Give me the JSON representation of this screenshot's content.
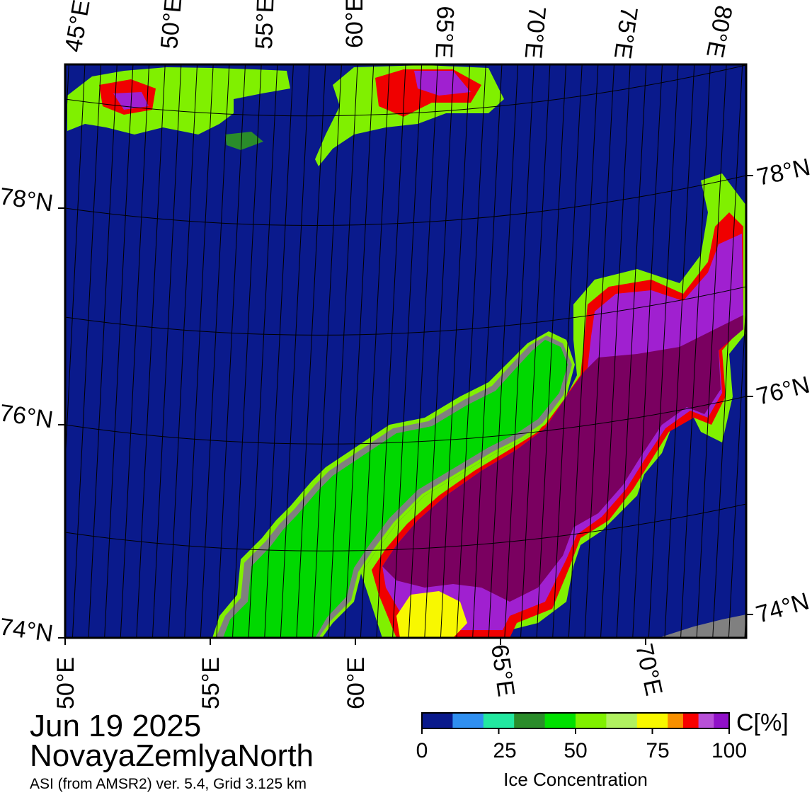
{
  "title_date": "Jun 19 2025",
  "title_region": "NovayaZemlyaNorth",
  "subtitle": "ASI (from AMSR2) ver. 5.4,  Grid 3.125 km",
  "top_lon_labels": [
    "45°E",
    "50°E",
    "55°E",
    "60°E",
    "65°E",
    "70°E",
    "75°E",
    "80°E"
  ],
  "bottom_lon_labels": [
    "50°E",
    "55°E",
    "60°E",
    "65°E",
    "70°E"
  ],
  "left_lat_labels": [
    "78°N",
    "76°N",
    "74°N"
  ],
  "right_lat_labels": [
    "78°N",
    "76°N",
    "74°N"
  ],
  "colorbar": {
    "unit": "C[%]",
    "label": "Ice Concentration",
    "ticks": [
      "0",
      "25",
      "50",
      "75",
      "100"
    ],
    "colors": [
      "#0a1a8c",
      "#0a1a8c",
      "#2f8ff0",
      "#22e8a0",
      "#2a8c2a",
      "#00e000",
      "#80f000",
      "#b0f060",
      "#f8f800",
      "#f89000",
      "#f80000",
      "#b850d8",
      "#9010c8"
    ]
  },
  "colors": {
    "ocean": "#0a1a8c",
    "land": "#00d800",
    "land_ice": "#808080",
    "full_ice": "#7a0060",
    "purple": "#a020d0",
    "red": "#f00000",
    "yellow": "#f8f800",
    "light_green": "#80f000"
  }
}
